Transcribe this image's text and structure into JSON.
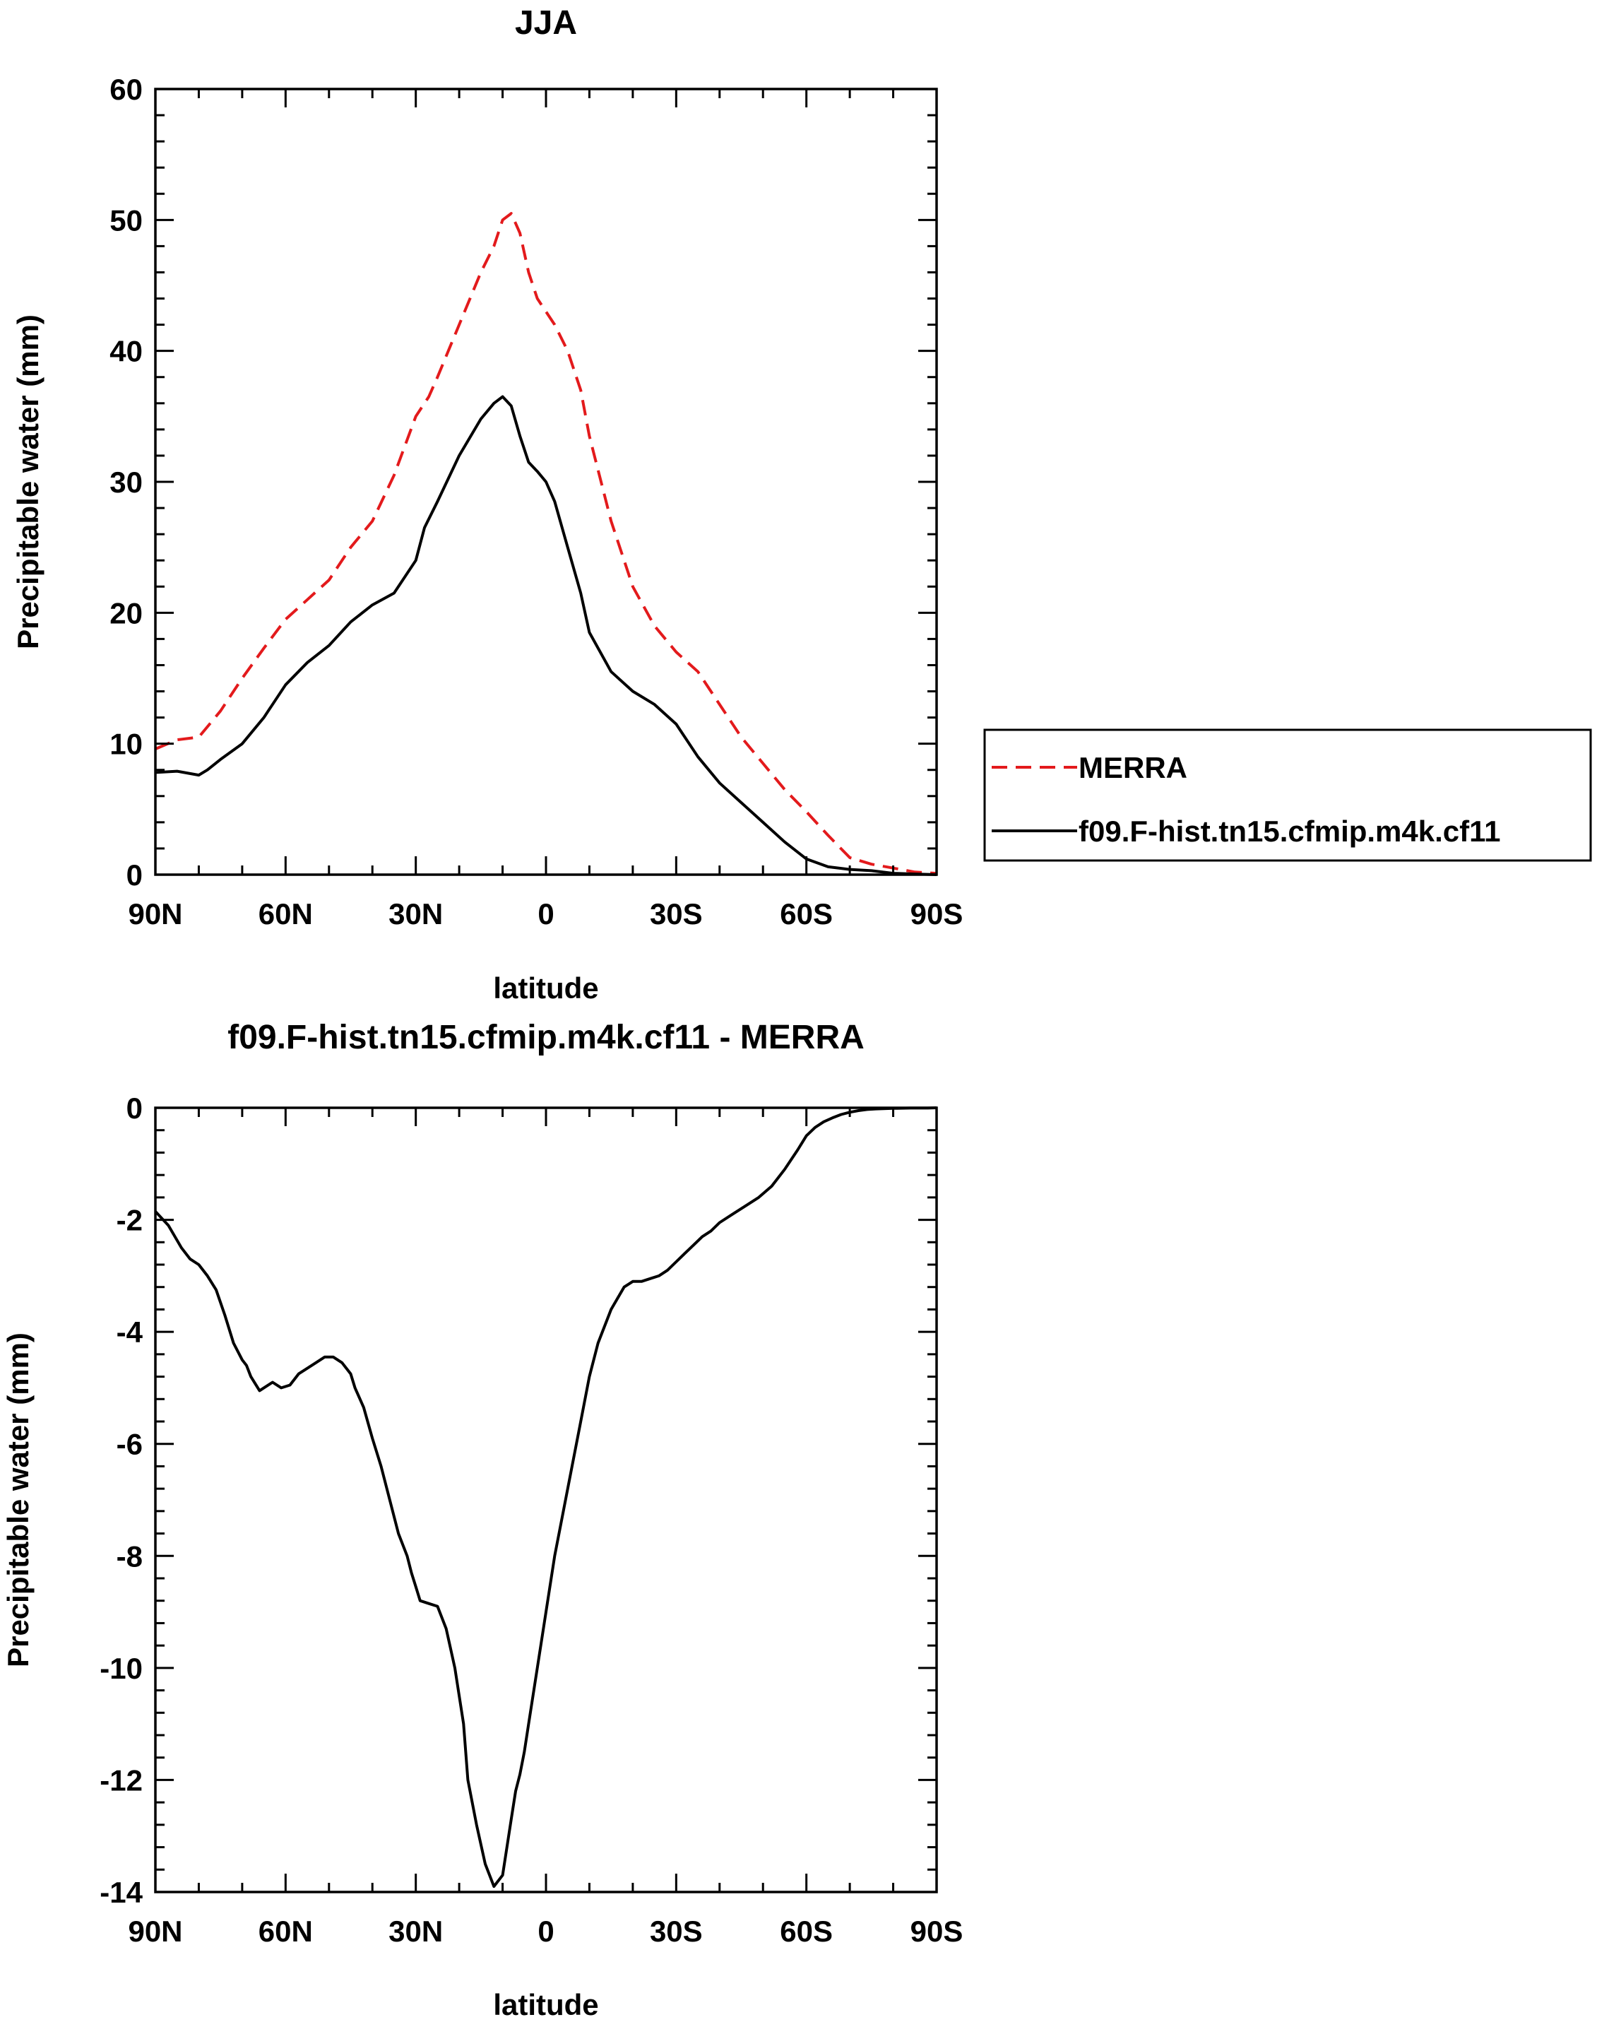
{
  "chart_data": [
    {
      "type": "line",
      "title": "JJA",
      "xlabel": "latitude",
      "ylabel": "Precipitable water (mm)",
      "xlim": [
        90,
        -90
      ],
      "ylim": [
        0,
        60
      ],
      "yticks": [
        0,
        10,
        20,
        30,
        40,
        50,
        60
      ],
      "xticks": [
        {
          "value": 90,
          "label": "90N"
        },
        {
          "value": 60,
          "label": "60N"
        },
        {
          "value": 30,
          "label": "30N"
        },
        {
          "value": 0,
          "label": "0"
        },
        {
          "value": -30,
          "label": "30S"
        },
        {
          "value": -60,
          "label": "60S"
        },
        {
          "value": -90,
          "label": "90S"
        }
      ],
      "legend_position": "right",
      "series": [
        {
          "name": "MERRA",
          "color": "#e31a1c",
          "style": "dashed",
          "x": [
            90,
            85,
            80,
            75,
            70,
            65,
            60,
            55,
            50,
            45,
            40,
            35,
            30,
            27,
            25,
            20,
            15,
            12,
            10,
            8,
            6,
            4,
            2,
            0,
            -2,
            -5,
            -8,
            -10,
            -15,
            -20,
            -25,
            -30,
            -35,
            -40,
            -45,
            -50,
            -55,
            -60,
            -65,
            -70,
            -75,
            -80,
            -85,
            -90
          ],
          "y": [
            9.6,
            10.3,
            10.5,
            12.5,
            15,
            17.3,
            19.5,
            21,
            22.5,
            25,
            27,
            30.5,
            35,
            36.5,
            38,
            42,
            46,
            48,
            50,
            50.5,
            49,
            46,
            44,
            43,
            42,
            40,
            37,
            33.5,
            27,
            22,
            19,
            17,
            15.5,
            13,
            10.5,
            8.5,
            6.5,
            4.8,
            3,
            1.3,
            0.8,
            0.5,
            0.2,
            0.1
          ]
        },
        {
          "name": "f09.F-hist.tn15.cfmip.m4k.cf11",
          "color": "#000000",
          "style": "solid",
          "x": [
            90,
            85,
            80,
            78,
            75,
            70,
            65,
            60,
            55,
            50,
            45,
            40,
            35,
            30,
            28,
            25,
            20,
            15,
            12,
            10,
            8,
            6,
            4,
            2,
            0,
            -2,
            -5,
            -8,
            -10,
            -15,
            -20,
            -25,
            -30,
            -35,
            -40,
            -45,
            -50,
            -55,
            -60,
            -65,
            -70,
            -75,
            -80,
            -85,
            -90
          ],
          "y": [
            7.8,
            7.9,
            7.6,
            8,
            8.8,
            10,
            12,
            14.5,
            16.2,
            17.5,
            19.3,
            20.6,
            21.5,
            24,
            26.5,
            28.5,
            32,
            34.8,
            36,
            36.5,
            35.8,
            33.5,
            31.5,
            30.8,
            30,
            28.5,
            25,
            21.5,
            18.5,
            15.5,
            14,
            13,
            11.5,
            9,
            7,
            5.5,
            4,
            2.5,
            1.2,
            0.6,
            0.4,
            0.3,
            0.1,
            0.05,
            0.0
          ]
        }
      ]
    },
    {
      "type": "line",
      "title": "f09.F-hist.tn15.cfmip.m4k.cf11 - MERRA",
      "xlabel": "latitude",
      "ylabel": "Precipitable water (mm)",
      "xlim": [
        90,
        -90
      ],
      "ylim": [
        -14,
        0
      ],
      "yticks": [
        -14,
        -12,
        -10,
        -8,
        -6,
        -4,
        -2,
        0
      ],
      "xticks": [
        {
          "value": 90,
          "label": "90N"
        },
        {
          "value": 60,
          "label": "60N"
        },
        {
          "value": 30,
          "label": "30N"
        },
        {
          "value": 0,
          "label": "0"
        },
        {
          "value": -30,
          "label": "30S"
        },
        {
          "value": -60,
          "label": "60S"
        },
        {
          "value": -90,
          "label": "90S"
        }
      ],
      "series": [
        {
          "color": "#000000",
          "style": "solid",
          "x": [
            90,
            87,
            84,
            82,
            80,
            78,
            76,
            74,
            72,
            70,
            69,
            68,
            66,
            65,
            63,
            61,
            59,
            57,
            55,
            53,
            51,
            49,
            47,
            45,
            44,
            42,
            40,
            38,
            36,
            34,
            32,
            31,
            30,
            29,
            27,
            25,
            23,
            21,
            19,
            18,
            16,
            14,
            12,
            10,
            9,
            8,
            7,
            6,
            5,
            4,
            2,
            0,
            -2,
            -4,
            -6,
            -8,
            -10,
            -12,
            -15,
            -18,
            -20,
            -22,
            -24,
            -26,
            -28,
            -30,
            -32,
            -34,
            -36,
            -38,
            -40,
            -43,
            -46,
            -49,
            -52,
            -55,
            -58,
            -60,
            -62,
            -64,
            -66,
            -68,
            -70,
            -72,
            -74,
            -76,
            -80,
            -84,
            -88,
            -90
          ],
          "y": [
            -1.85,
            -2.1,
            -2.5,
            -2.7,
            -2.8,
            -3.0,
            -3.25,
            -3.7,
            -4.2,
            -4.5,
            -4.6,
            -4.8,
            -5.05,
            -5.0,
            -4.9,
            -5.0,
            -4.95,
            -4.75,
            -4.65,
            -4.55,
            -4.45,
            -4.45,
            -4.55,
            -4.75,
            -5.0,
            -5.35,
            -5.9,
            -6.4,
            -7.0,
            -7.6,
            -8.0,
            -8.3,
            -8.55,
            -8.8,
            -8.85,
            -8.9,
            -9.3,
            -10.0,
            -11.0,
            -12.0,
            -12.8,
            -13.5,
            -13.9,
            -13.7,
            -13.2,
            -12.7,
            -12.2,
            -11.9,
            -11.5,
            -11.0,
            -10.0,
            -9.0,
            -8.0,
            -7.2,
            -6.4,
            -5.6,
            -4.8,
            -4.2,
            -3.6,
            -3.2,
            -3.1,
            -3.1,
            -3.05,
            -3.0,
            -2.9,
            -2.75,
            -2.6,
            -2.45,
            -2.3,
            -2.2,
            -2.05,
            -1.9,
            -1.75,
            -1.6,
            -1.4,
            -1.1,
            -0.75,
            -0.5,
            -0.35,
            -0.25,
            -0.18,
            -0.12,
            -0.08,
            -0.05,
            -0.03,
            -0.02,
            -0.01,
            -0.005,
            -0.005,
            0.0
          ]
        }
      ]
    }
  ]
}
